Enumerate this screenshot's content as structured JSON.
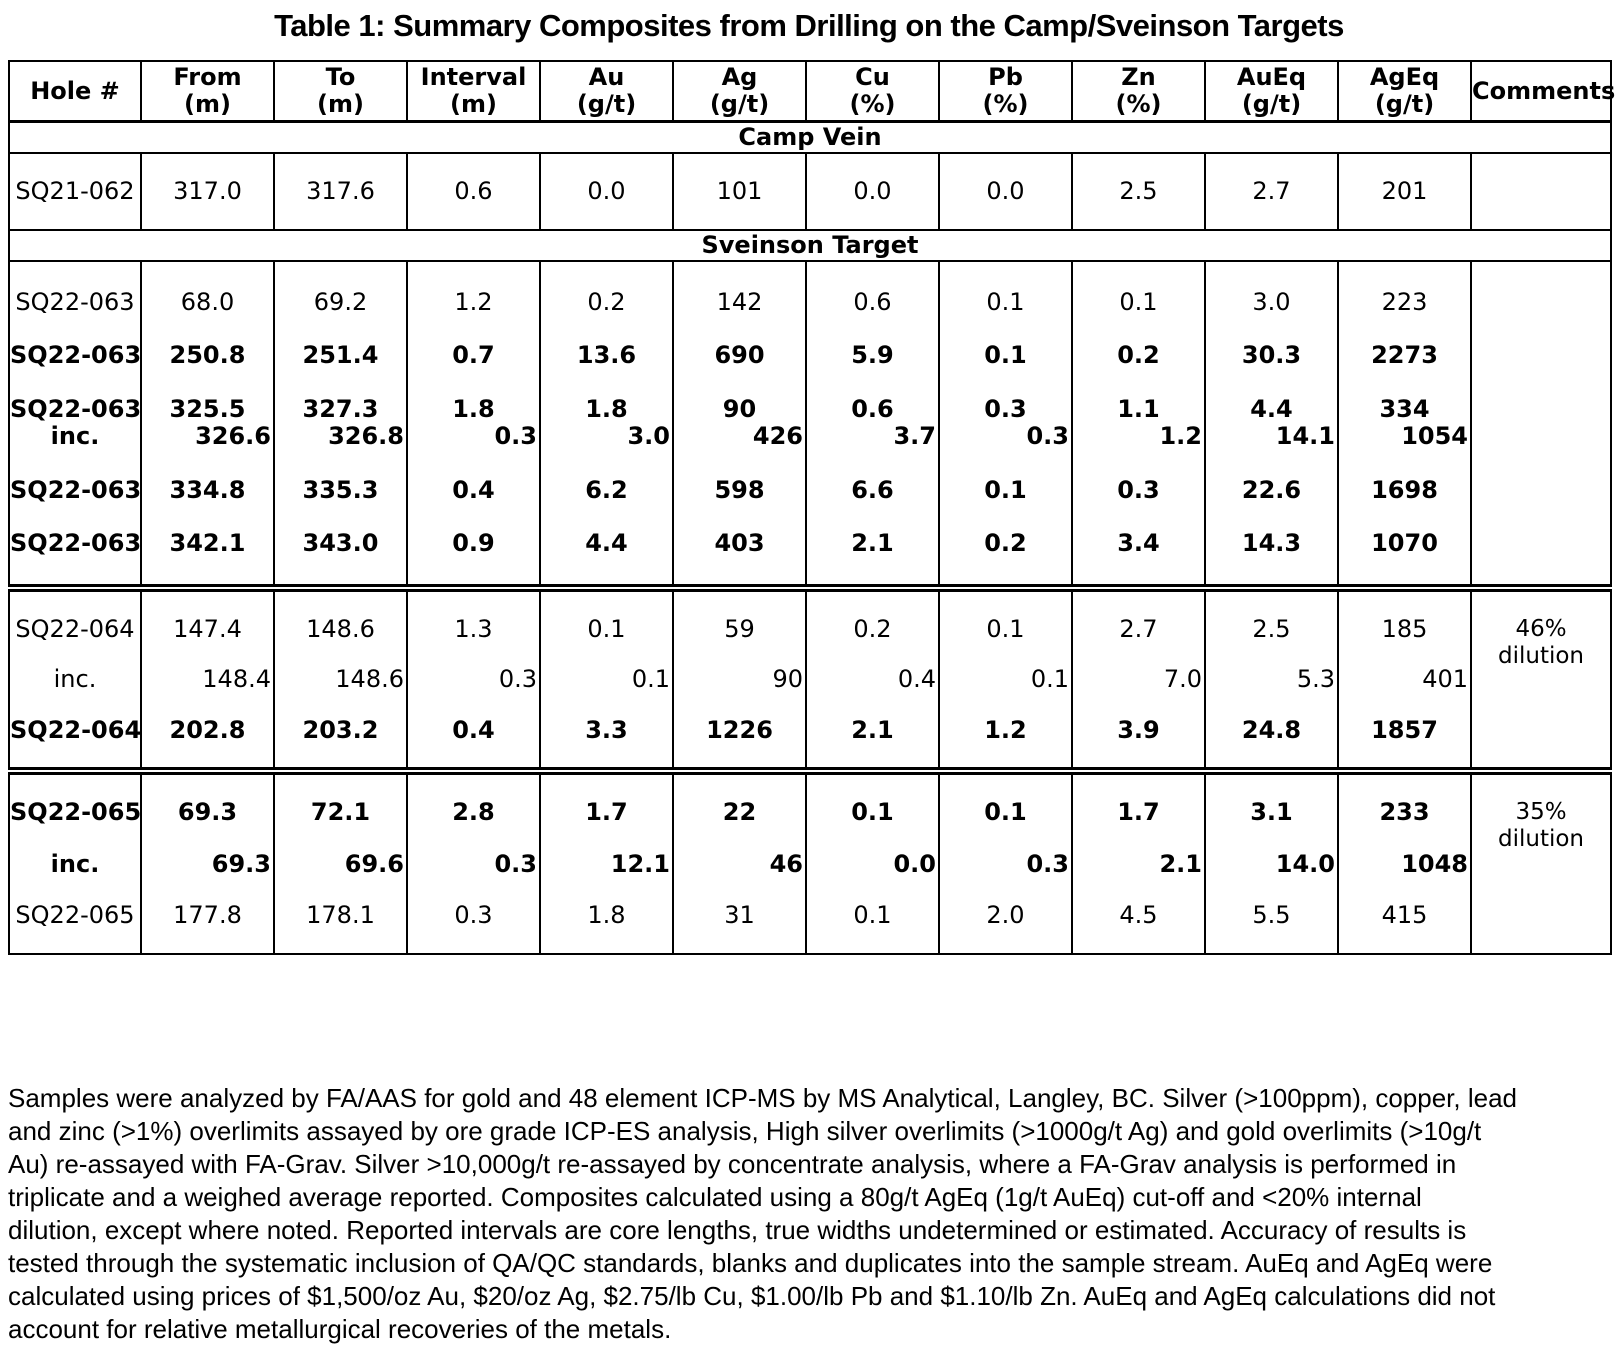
{
  "title": "Table 1: Summary Composites from Drilling on the Camp/Sveinson Targets",
  "table": {
    "columns": [
      {
        "key": "hole",
        "label": "Hole #",
        "unit": ""
      },
      {
        "key": "from",
        "label": "From",
        "unit": "(m)"
      },
      {
        "key": "to",
        "label": "To",
        "unit": "(m)"
      },
      {
        "key": "interval",
        "label": "Interval",
        "unit": "(m)"
      },
      {
        "key": "au",
        "label": "Au",
        "unit": "(g/t)"
      },
      {
        "key": "ag",
        "label": "Ag",
        "unit": "(g/t)"
      },
      {
        "key": "cu",
        "label": "Cu",
        "unit": "(%)"
      },
      {
        "key": "pb",
        "label": "Pb",
        "unit": "(%)"
      },
      {
        "key": "zn",
        "label": "Zn",
        "unit": "(%)"
      },
      {
        "key": "aueq",
        "label": "AuEq",
        "unit": "(g/t)"
      },
      {
        "key": "ageq",
        "label": "AgEq",
        "unit": "(g/t)"
      },
      {
        "key": "comments",
        "label": "Comments",
        "unit": ""
      }
    ],
    "sections": [
      {
        "name": "Camp Vein",
        "blocks": [
          {
            "size": "camp",
            "rows": [
              {
                "bold": false,
                "sub": false,
                "hole": [
                  "SQ21-062"
                ],
                "values": [
                  "317.0",
                  "317.6",
                  "0.6",
                  "0.0",
                  "101",
                  "0.0",
                  "0.0",
                  "2.5",
                  "2.7",
                  "201"
                ],
                "comment": []
              }
            ]
          }
        ]
      },
      {
        "name": "Sveinson Target",
        "blocks": [
          {
            "size": "b1",
            "rows": [
              {
                "bold": false,
                "sub": false,
                "hole": [
                  "SQ22-063"
                ],
                "values": [
                  "68.0",
                  "69.2",
                  "1.2",
                  "0.2",
                  "142",
                  "0.6",
                  "0.1",
                  "0.1",
                  "3.0",
                  "223"
                ],
                "comment": []
              },
              {
                "bold": true,
                "sub": false,
                "hole": [
                  "SQ22-063"
                ],
                "values": [
                  "250.8",
                  "251.4",
                  "0.7",
                  "13.6",
                  "690",
                  "5.9",
                  "0.1",
                  "0.2",
                  "30.3",
                  "2273"
                ],
                "comment": []
              },
              {
                "bold": true,
                "sub": false,
                "hole": [
                  "SQ22-063",
                  "inc."
                ],
                "values": [
                  [
                    "325.5",
                    "326.6"
                  ],
                  [
                    "327.3",
                    "326.8"
                  ],
                  [
                    "1.8",
                    "0.3"
                  ],
                  [
                    "1.8",
                    "3.0"
                  ],
                  [
                    "90",
                    "426"
                  ],
                  [
                    "0.6",
                    "3.7"
                  ],
                  [
                    "0.3",
                    "0.3"
                  ],
                  [
                    "1.1",
                    "1.2"
                  ],
                  [
                    "4.4",
                    "14.1"
                  ],
                  [
                    "334",
                    "1054"
                  ]
                ],
                "comment": []
              },
              {
                "bold": true,
                "sub": false,
                "hole": [
                  "SQ22-063"
                ],
                "values": [
                  "334.8",
                  "335.3",
                  "0.4",
                  "6.2",
                  "598",
                  "6.6",
                  "0.1",
                  "0.3",
                  "22.6",
                  "1698"
                ],
                "comment": []
              },
              {
                "bold": true,
                "sub": false,
                "hole": [
                  "SQ22-063"
                ],
                "values": [
                  "342.1",
                  "343.0",
                  "0.9",
                  "4.4",
                  "403",
                  "2.1",
                  "0.2",
                  "3.4",
                  "14.3",
                  "1070"
                ],
                "comment": []
              }
            ]
          },
          {
            "size": "b2",
            "rows": [
              {
                "bold": false,
                "sub": false,
                "hole": [
                  "SQ22-064"
                ],
                "values": [
                  "147.4",
                  "148.6",
                  "1.3",
                  "0.1",
                  "59",
                  "0.2",
                  "0.1",
                  "2.7",
                  "2.5",
                  "185"
                ],
                "comment": [
                  "46%",
                  "dilution"
                ]
              },
              {
                "bold": false,
                "sub": true,
                "hole": [
                  "inc."
                ],
                "values": [
                  "148.4",
                  "148.6",
                  "0.3",
                  "0.1",
                  "90",
                  "0.4",
                  "0.1",
                  "7.0",
                  "5.3",
                  "401"
                ],
                "comment": []
              },
              {
                "bold": true,
                "sub": false,
                "hole": [
                  "SQ22-064"
                ],
                "values": [
                  "202.8",
                  "203.2",
                  "0.4",
                  "3.3",
                  "1226",
                  "2.1",
                  "1.2",
                  "3.9",
                  "24.8",
                  "1857"
                ],
                "comment": []
              }
            ]
          },
          {
            "size": "b3",
            "rows": [
              {
                "bold": true,
                "sub": false,
                "hole": [
                  "SQ22-065"
                ],
                "values": [
                  "69.3",
                  "72.1",
                  "2.8",
                  "1.7",
                  "22",
                  "0.1",
                  "0.1",
                  "1.7",
                  "3.1",
                  "233"
                ],
                "comment": [
                  "35%",
                  "dilution"
                ]
              },
              {
                "bold": true,
                "sub": true,
                "hole": [
                  "inc."
                ],
                "values": [
                  "69.3",
                  "69.6",
                  "0.3",
                  "12.1",
                  "46",
                  "0.0",
                  "0.3",
                  "2.1",
                  "14.0",
                  "1048"
                ],
                "comment": []
              },
              {
                "bold": false,
                "sub": false,
                "hole": [
                  "SQ22-065"
                ],
                "values": [
                  "177.8",
                  "178.1",
                  "0.3",
                  "1.8",
                  "31",
                  "0.1",
                  "2.0",
                  "4.5",
                  "5.5",
                  "415"
                ],
                "comment": []
              }
            ]
          }
        ]
      }
    ]
  },
  "footnote_lines": [
    "Samples were analyzed by FA/AAS for gold and 48 element ICP-MS by MS Analytical, Langley, BC. Silver (>100ppm), copper, lead",
    "and zinc (>1%) overlimits assayed by ore grade ICP-ES analysis, High silver overlimits (>1000g/t Ag) and gold overlimits (>10g/t",
    "Au) re-assayed with FA-Grav. Silver >10,000g/t re-assayed by concentrate analysis, where a FA-Grav analysis is performed in",
    "triplicate and a weighed average reported. Composites calculated using a 80g/t AgEq (1g/t AuEq) cut-off and <20% internal",
    "dilution, except where noted. Reported intervals are core lengths, true widths undetermined or estimated. Accuracy of results is",
    "tested through the systematic inclusion of QA/QC standards, blanks and duplicates into the sample stream. AuEq and AgEq were",
    "calculated using prices of $1,500/oz Au, $20/oz Ag, $2.75/lb Cu, $1.00/lb Pb and $1.10/lb Zn. AuEq and AgEq calculations did not",
    "account for relative metallurgical recoveries of the metals."
  ]
}
